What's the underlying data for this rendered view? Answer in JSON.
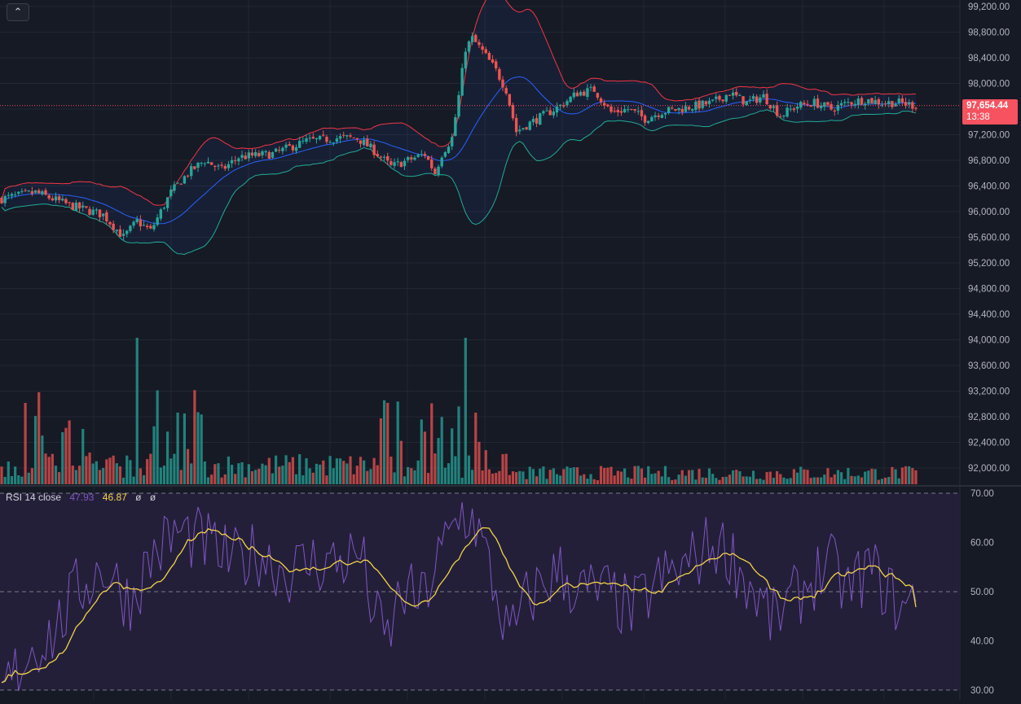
{
  "chart_data": [
    {
      "type": "candlestick",
      "title": "",
      "price_axis": {
        "ticks": [
          "99,200.00",
          "98,800.00",
          "98,400.00",
          "98,000.00",
          "97,600.00",
          "97,200.00",
          "96,800.00",
          "96,400.00",
          "96,000.00",
          "95,600.00",
          "95,200.00",
          "94,800.00",
          "94,400.00",
          "94,000.00",
          "93,600.00",
          "93,200.00",
          "92,800.00",
          "92,400.00",
          "92,000.00"
        ],
        "ylim": [
          91800,
          99280
        ]
      },
      "last_price": "97,654.44",
      "countdown": "13:38",
      "indicators": [
        "Bollinger Bands",
        "Volume"
      ],
      "close_anchors": [
        [
          0,
          96200
        ],
        [
          10,
          96300
        ],
        [
          20,
          96100
        ],
        [
          30,
          95950
        ],
        [
          36,
          95600
        ],
        [
          40,
          95850
        ],
        [
          44,
          95700
        ],
        [
          50,
          96300
        ],
        [
          55,
          96600
        ],
        [
          60,
          96800
        ],
        [
          65,
          96650
        ],
        [
          70,
          96850
        ],
        [
          80,
          96900
        ],
        [
          90,
          97100
        ],
        [
          100,
          97150
        ],
        [
          105,
          97150
        ],
        [
          110,
          96950
        ],
        [
          115,
          96700
        ],
        [
          120,
          96800
        ],
        [
          125,
          96900
        ],
        [
          128,
          96600
        ],
        [
          130,
          96900
        ],
        [
          133,
          97150
        ],
        [
          135,
          97800
        ],
        [
          137,
          98550
        ],
        [
          139,
          98700
        ],
        [
          142,
          98500
        ],
        [
          146,
          98200
        ],
        [
          149,
          97900
        ],
        [
          152,
          97250
        ],
        [
          155,
          97350
        ],
        [
          160,
          97500
        ],
        [
          165,
          97650
        ],
        [
          170,
          97850
        ],
        [
          175,
          97900
        ],
        [
          180,
          97550
        ],
        [
          185,
          97600
        ],
        [
          190,
          97450
        ],
        [
          195,
          97560
        ],
        [
          200,
          97600
        ],
        [
          210,
          97700
        ],
        [
          215,
          97850
        ],
        [
          220,
          97700
        ],
        [
          225,
          97800
        ],
        [
          230,
          97500
        ],
        [
          235,
          97650
        ],
        [
          240,
          97700
        ],
        [
          245,
          97600
        ],
        [
          250,
          97700
        ],
        [
          255,
          97750
        ],
        [
          260,
          97700
        ],
        [
          265,
          97700
        ],
        [
          270,
          97654
        ]
      ]
    },
    {
      "type": "line",
      "title": "RSI 14 close",
      "values_shown": [
        "47.93",
        "46.87",
        "ø",
        "ø"
      ],
      "axis_ticks": [
        "70.00",
        "60.00",
        "50.00",
        "40.00",
        "30.00"
      ],
      "ylim": [
        28,
        71
      ],
      "band": [
        30,
        70
      ],
      "midline": 50,
      "series": [
        {
          "name": "RSI",
          "last": 47.93,
          "color": "#7e57c2"
        },
        {
          "name": "RSI-based MA",
          "last": 46.87,
          "color": "#f2d349"
        }
      ],
      "rsi_anchors": [
        [
          0,
          29
        ],
        [
          8,
          38
        ],
        [
          16,
          42
        ],
        [
          22,
          50
        ],
        [
          30,
          55
        ],
        [
          38,
          48
        ],
        [
          45,
          58
        ],
        [
          52,
          62
        ],
        [
          60,
          60
        ],
        [
          68,
          56
        ],
        [
          76,
          58
        ],
        [
          84,
          54
        ],
        [
          92,
          56
        ],
        [
          100,
          56
        ],
        [
          106,
          58
        ],
        [
          110,
          45
        ],
        [
          114,
          40
        ],
        [
          118,
          50
        ],
        [
          124,
          48
        ],
        [
          130,
          58
        ],
        [
          136,
          66
        ],
        [
          140,
          64
        ],
        [
          145,
          52
        ],
        [
          150,
          40
        ],
        [
          155,
          48
        ],
        [
          160,
          52
        ],
        [
          165,
          54
        ],
        [
          170,
          50
        ],
        [
          178,
          50
        ],
        [
          186,
          46
        ],
        [
          194,
          52
        ],
        [
          202,
          55
        ],
        [
          210,
          60
        ],
        [
          215,
          58
        ],
        [
          220,
          52
        ],
        [
          228,
          44
        ],
        [
          236,
          50
        ],
        [
          244,
          56
        ],
        [
          250,
          50
        ],
        [
          256,
          55
        ],
        [
          262,
          50
        ],
        [
          266,
          46
        ],
        [
          270,
          48
        ]
      ]
    }
  ],
  "ui": {
    "collapse_icon": "chevron-up-icon",
    "colors": {
      "background": "#161a25",
      "grid": "#232733",
      "up": "#26a69a",
      "down": "#ef5350",
      "bb_upper": "#f23645",
      "bb_lower": "#22ab94",
      "bb_basis": "#2962ff",
      "rsi_line": "#7e57c2",
      "rsi_ma": "#f2d349",
      "rsi_band": "#241f39"
    }
  }
}
